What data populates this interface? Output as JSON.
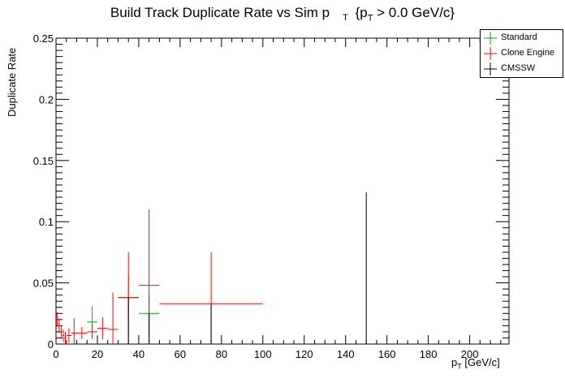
{
  "chart_data": {
    "type": "scatter",
    "title": "Build Track Duplicate Rate vs Sim p",
    "title_sub": "T",
    "title_tail": "{p",
    "title_tail_sub": "T",
    "title_tail_end": "> 0.0 GeV/c}",
    "xlabel": "p",
    "xlabel_sub": "T",
    "xlabel_unit": "[GeV/c]",
    "ylabel": "Duplicate Rate",
    "xlim": [
      0,
      219
    ],
    "ylim": [
      0,
      0.25
    ],
    "x_ticks": [
      "0",
      "20",
      "40",
      "60",
      "80",
      "100",
      "120",
      "140",
      "160",
      "180",
      "200"
    ],
    "y_ticks": [
      "0",
      "0.05",
      "0.1",
      "0.15",
      "0.2",
      "0.25"
    ],
    "x_tick_values": [
      0,
      20,
      40,
      60,
      80,
      100,
      120,
      140,
      160,
      180,
      200
    ],
    "y_tick_values": [
      0,
      0.05,
      0.1,
      0.15,
      0.2,
      0.25
    ],
    "legend_position": "top-right",
    "series": [
      {
        "name": "Standard",
        "color": "#00aa00",
        "points": [
          {
            "x": 17.5,
            "y": 0.018,
            "xerr": 2.5,
            "yerr": 0.013
          },
          {
            "x": 35,
            "y": 0.038,
            "xerr": 5,
            "yerr": 0.018
          },
          {
            "x": 45,
            "y": 0.025,
            "xerr": 5,
            "yerr": 0.015
          }
        ]
      },
      {
        "name": "Clone Engine",
        "color": "#ff0000",
        "points": [
          {
            "x": 0.5,
            "y": 0.02,
            "xerr": 0.5,
            "yerr": 0.006
          },
          {
            "x": 1.5,
            "y": 0.015,
            "xerr": 0.5,
            "yerr": 0.006
          },
          {
            "x": 2.5,
            "y": 0.01,
            "xerr": 0.5,
            "yerr": 0.005
          },
          {
            "x": 3.5,
            "y": 0.007,
            "xerr": 0.5,
            "yerr": 0.005
          },
          {
            "x": 4.5,
            "y": 0.005,
            "xerr": 0.5,
            "yerr": 0.005
          },
          {
            "x": 6.25,
            "y": 0.007,
            "xerr": 1.25,
            "yerr": 0.006
          },
          {
            "x": 8.75,
            "y": 0.009,
            "xerr": 1.25,
            "yerr": 0.012
          },
          {
            "x": 12.5,
            "y": 0.009,
            "xerr": 2.5,
            "yerr": 0.005
          },
          {
            "x": 17.5,
            "y": 0.01,
            "xerr": 2.5,
            "yerr": 0.006
          },
          {
            "x": 22.5,
            "y": 0.013,
            "xerr": 2.5,
            "yerr": 0.009
          },
          {
            "x": 27.5,
            "y": 0.012,
            "xerr": 2.5,
            "yerr": 0.03
          },
          {
            "x": 35,
            "y": 0.038,
            "xerr": 5,
            "yerr": 0.037
          },
          {
            "x": 45,
            "y": 0.048,
            "xerr": 5,
            "yerr": 0.062
          },
          {
            "x": 75,
            "y": 0.033,
            "xerr": 25,
            "yerr": 0.042
          }
        ]
      },
      {
        "name": "CMSSW",
        "color": "#000000",
        "points": [
          {
            "x": 35,
            "y": 0,
            "xerr": 0,
            "yerr": 0.038
          },
          {
            "x": 45,
            "y": 0,
            "xerr": 0,
            "yerr": 0.025
          },
          {
            "x": 75,
            "y": 0,
            "xerr": 0,
            "yerr": 0.033
          },
          {
            "x": 150,
            "y": 0,
            "xerr": 0,
            "yerr": 0.124
          }
        ]
      }
    ]
  }
}
